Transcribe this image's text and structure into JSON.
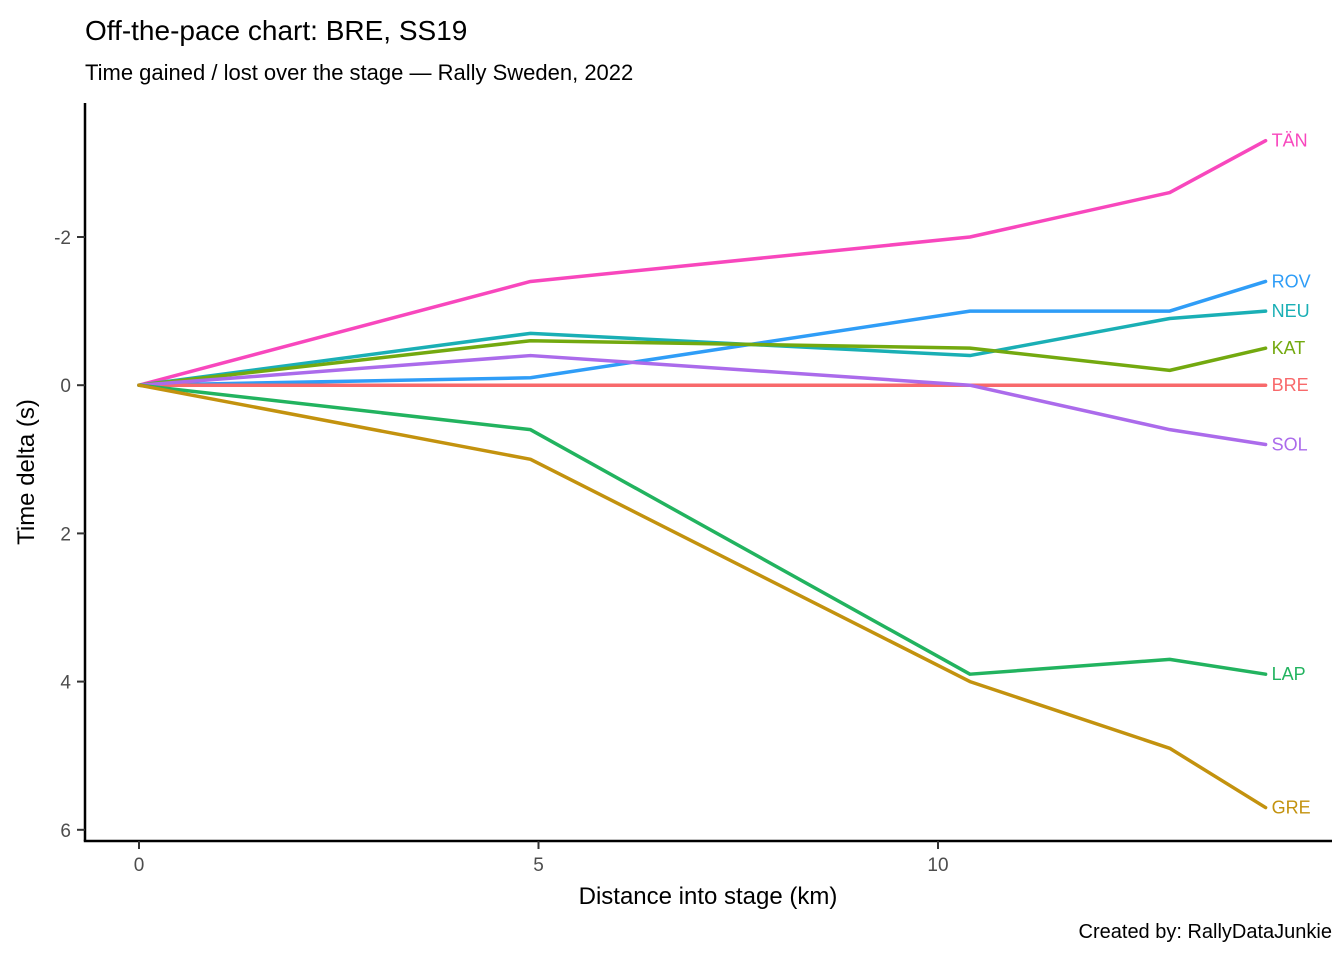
{
  "header": {
    "title": "Off-the-pace chart: BRE, SS19",
    "subtitle": "Time gained / lost over the stage — Rally Sweden, 2022"
  },
  "caption": "Created by: RallyDataJunkie",
  "chart_data": {
    "type": "line",
    "title": "Off-the-pace chart: BRE, SS19",
    "subtitle": "Time gained / lost over the stage — Rally Sweden, 2022",
    "xlabel": "Distance into stage (km)",
    "ylabel": "Time delta (s)",
    "x_ticks": [
      0,
      5,
      10
    ],
    "y_ticks": [
      -2,
      0,
      2,
      4,
      6
    ],
    "xlim": [
      -0.7,
      14.9
    ],
    "ylim": [
      -3.8,
      6.15
    ],
    "y_axis_reversed": true,
    "grid": false,
    "legend_position": "direct-labels-right",
    "reference_driver": "BRE",
    "x": [
      0,
      4.9,
      10.4,
      12.9,
      14.1
    ],
    "series": [
      {
        "name": "TÄN",
        "color": "#F847BD",
        "values": [
          0,
          -1.4,
          -2.0,
          -2.6,
          -3.3
        ]
      },
      {
        "name": "ROV",
        "color": "#2F9DF7",
        "values": [
          0,
          -0.1,
          -1.0,
          -1.0,
          -1.4
        ]
      },
      {
        "name": "NEU",
        "color": "#1AAFB5",
        "values": [
          0,
          -0.7,
          -0.4,
          -0.9,
          -1.0
        ]
      },
      {
        "name": "KAT",
        "color": "#73A90F",
        "values": [
          0,
          -0.6,
          -0.5,
          -0.2,
          -0.5
        ]
      },
      {
        "name": "BRE",
        "color": "#F8696B",
        "values": [
          0,
          0,
          0,
          0,
          0
        ]
      },
      {
        "name": "SOL",
        "color": "#AB6BEB",
        "values": [
          0,
          -0.4,
          0.0,
          0.6,
          0.8
        ]
      },
      {
        "name": "LAP",
        "color": "#22B35F",
        "values": [
          0,
          0.6,
          3.9,
          3.7,
          3.9
        ]
      },
      {
        "name": "GRE",
        "color": "#C3920E",
        "values": [
          0,
          1.0,
          4.0,
          4.9,
          5.7
        ]
      }
    ]
  }
}
